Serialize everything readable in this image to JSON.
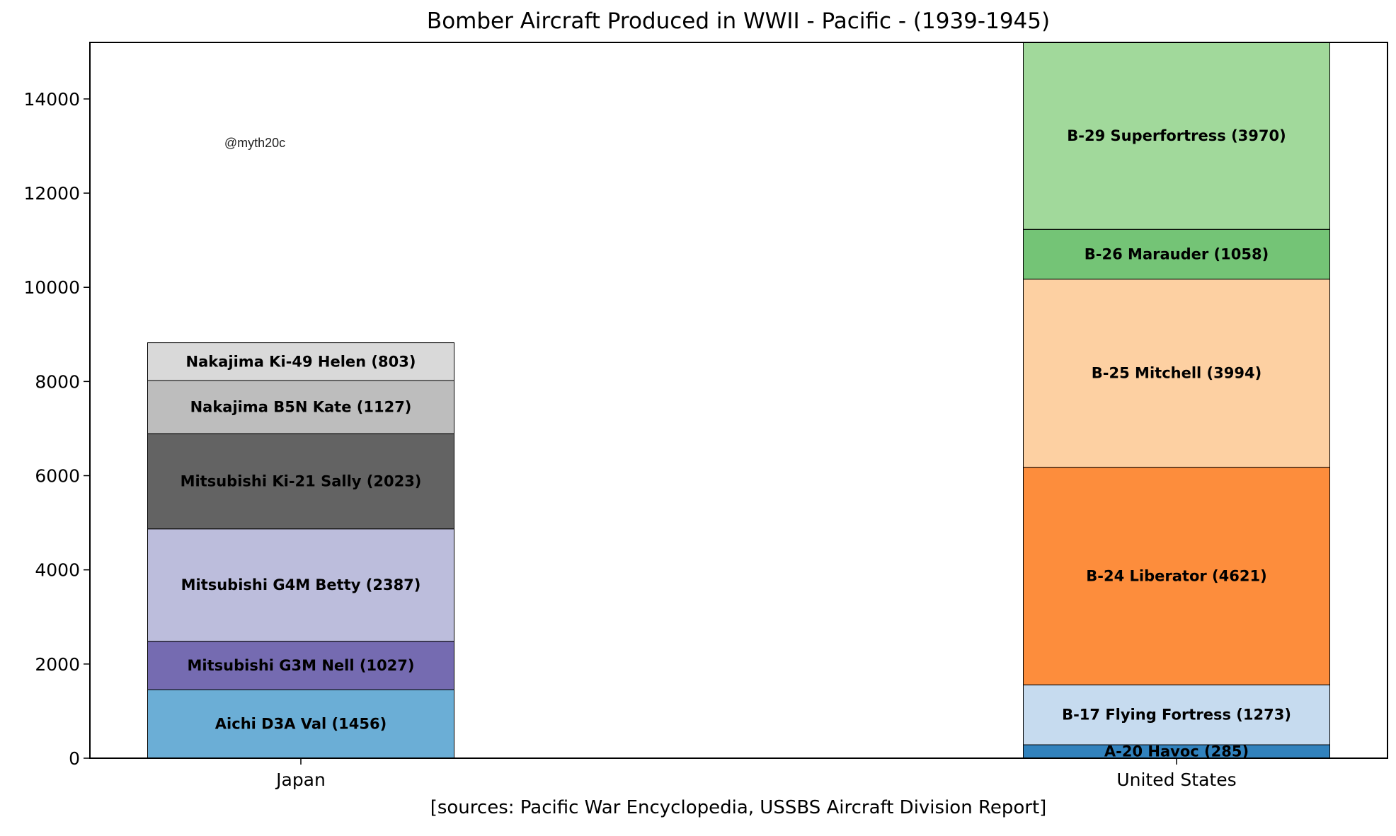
{
  "chart_data": {
    "type": "bar",
    "stacked": true,
    "title": "Bomber Aircraft Produced in WWII - Pacific - (1939-1945)",
    "xlabel": "[sources: Pacific War Encyclopedia, USSBS Aircraft Division Report]",
    "ylabel": "",
    "ylim": [
      0,
      15200
    ],
    "yticks": [
      0,
      2000,
      4000,
      6000,
      8000,
      10000,
      12000,
      14000
    ],
    "watermark": "@myth20c",
    "categories": [
      "Japan",
      "United States"
    ],
    "stacks": [
      {
        "category": "Japan",
        "segments": [
          {
            "name": "Aichi D3A Val",
            "value": 1456,
            "label": "Aichi D3A Val (1456)",
            "color": "#6baed6"
          },
          {
            "name": "Mitsubishi G3M Nell",
            "value": 1027,
            "label": "Mitsubishi G3M Nell (1027)",
            "color": "#756bb1"
          },
          {
            "name": "Mitsubishi G4M Betty",
            "value": 2387,
            "label": "Mitsubishi G4M Betty (2387)",
            "color": "#bcbddc"
          },
          {
            "name": "Mitsubishi Ki-21 Sally",
            "value": 2023,
            "label": "Mitsubishi Ki-21 Sally (2023)",
            "color": "#636363"
          },
          {
            "name": "Nakajima B5N Kate",
            "value": 1127,
            "label": "Nakajima B5N Kate (1127)",
            "color": "#bdbdbd"
          },
          {
            "name": "Nakajima Ki-49 Helen",
            "value": 803,
            "label": "Nakajima Ki-49 Helen (803)",
            "color": "#d9d9d9"
          }
        ]
      },
      {
        "category": "United States",
        "segments": [
          {
            "name": "A-20 Havoc",
            "value": 285,
            "label": "A-20 Havoc (285)",
            "color": "#3182bd"
          },
          {
            "name": "B-17 Flying Fortress",
            "value": 1273,
            "label": "B-17 Flying Fortress (1273)",
            "color": "#c6dbef"
          },
          {
            "name": "B-24 Liberator",
            "value": 4621,
            "label": "B-24 Liberator (4621)",
            "color": "#fd8d3c"
          },
          {
            "name": "B-25 Mitchell",
            "value": 3994,
            "label": "B-25 Mitchell (3994)",
            "color": "#fdd0a2"
          },
          {
            "name": "B-26 Marauder",
            "value": 1058,
            "label": "B-26 Marauder (1058)",
            "color": "#74c476"
          },
          {
            "name": "B-29 Superfortress",
            "value": 3970,
            "label": "B-29 Superfortress (3970)",
            "color": "#a1d99b"
          }
        ]
      }
    ]
  }
}
